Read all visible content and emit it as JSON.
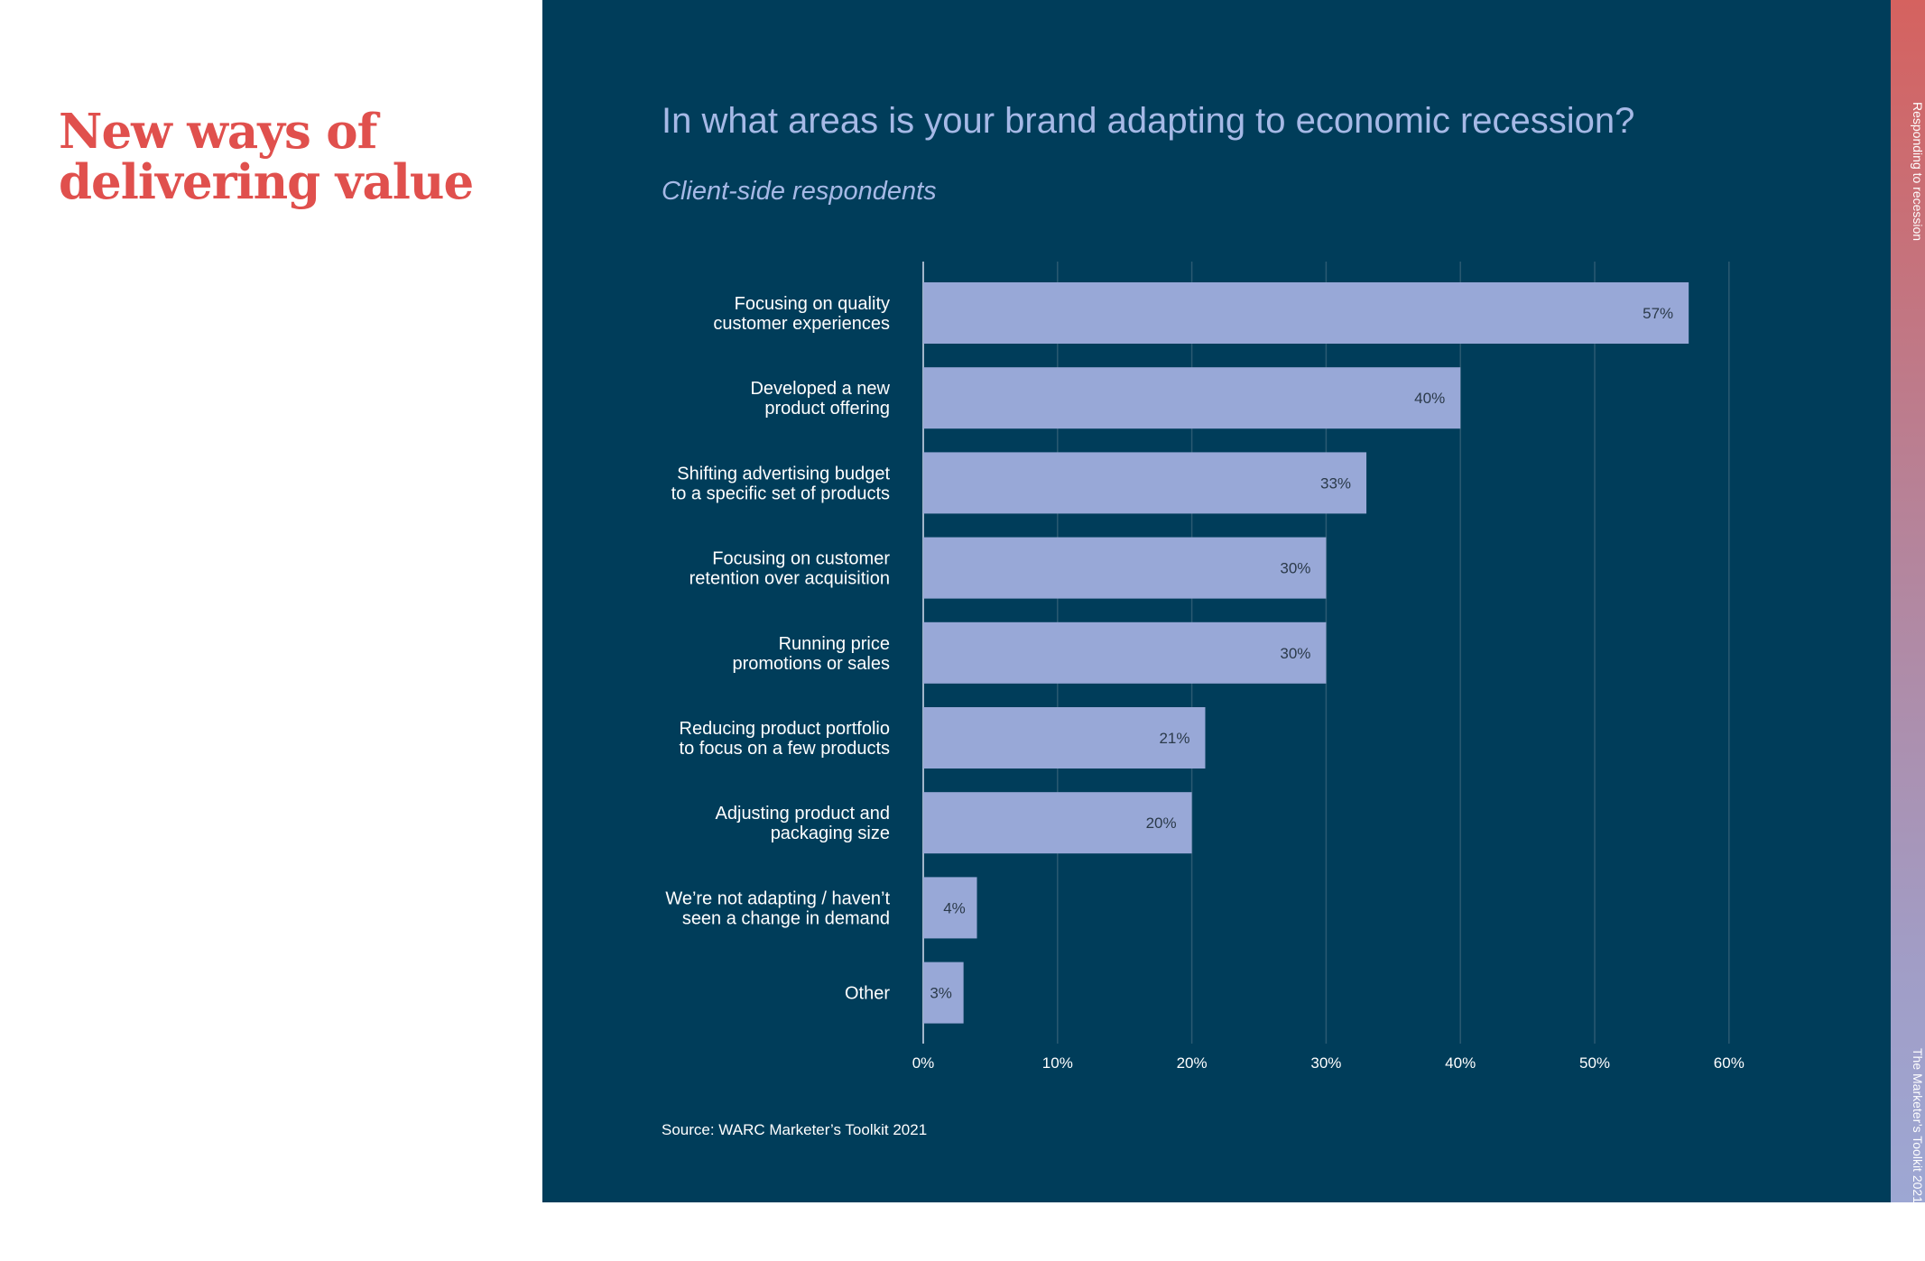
{
  "left": {
    "heading_line1": "New ways of",
    "heading_line2": "delivering value"
  },
  "chart_header": {
    "title": "In what areas is your brand adapting to economic recession?",
    "subtitle": "Client-side respondents"
  },
  "source": "Source: WARC Marketer’s Toolkit 2021",
  "side": {
    "top_text": "Responding to recession",
    "bottom_text": "The Marketer’s Toolkit 2021"
  },
  "colors": {
    "background": "#003d5a",
    "bar": "#98a8d7",
    "heading": "#e0504d",
    "title": "#a6b9e6",
    "grid": "#2b5a72"
  },
  "chart_data": {
    "type": "bar",
    "orientation": "horizontal",
    "title": "In what areas is your brand adapting to economic recession?",
    "subtitle": "Client-side respondents",
    "categories": [
      [
        "Focusing on quality",
        "customer experiences"
      ],
      [
        "Developed a new",
        "product offering"
      ],
      [
        "Shifting advertising budget",
        "to a specific set of products"
      ],
      [
        "Focusing on customer",
        "retention over acquisition"
      ],
      [
        "Running price",
        "promotions or sales"
      ],
      [
        "Reducing product portfolio",
        "to focus on a few products"
      ],
      [
        "Adjusting product and",
        "packaging size"
      ],
      [
        "We’re not adapting / haven’t",
        "seen a change in demand"
      ],
      [
        "Other"
      ]
    ],
    "values": [
      57,
      40,
      33,
      30,
      30,
      21,
      20,
      4,
      3
    ],
    "value_labels": [
      "57%",
      "40%",
      "33%",
      "30%",
      "30%",
      "21%",
      "20%",
      "4%",
      "3%"
    ],
    "xlim": [
      0,
      60
    ],
    "xticks": [
      0,
      10,
      20,
      30,
      40,
      50,
      60
    ],
    "xtick_labels": [
      "0%",
      "10%",
      "20%",
      "30%",
      "40%",
      "50%",
      "60%"
    ],
    "grid": true
  }
}
